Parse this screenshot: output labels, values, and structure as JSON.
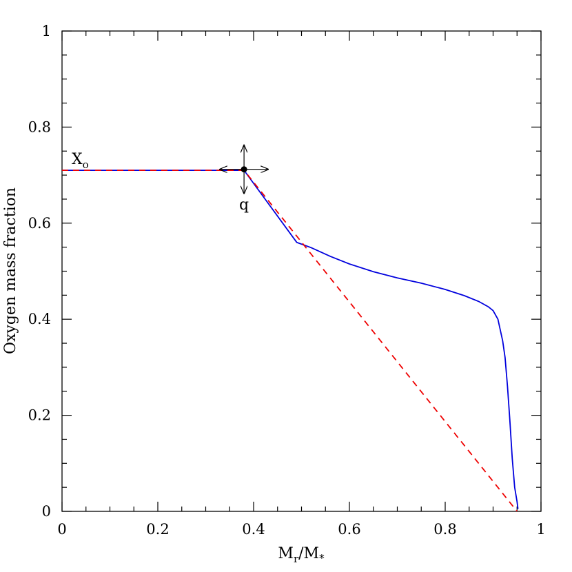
{
  "chart_data": {
    "type": "line",
    "title": "",
    "xlabel_main": "M",
    "xlabel_sub1": "r",
    "xlabel_mid": "/M",
    "xlabel_sub2": "*",
    "ylabel": "Oxygen mass fraction",
    "xlim": [
      0,
      1
    ],
    "ylim": [
      0,
      1
    ],
    "x_ticks": [
      0,
      0.2,
      0.4,
      0.6,
      0.8,
      1
    ],
    "x_tick_labels": [
      "0",
      "0.2",
      "0.4",
      "0.6",
      "0.8",
      "1"
    ],
    "y_ticks": [
      0,
      0.2,
      0.4,
      0.6,
      0.8,
      1
    ],
    "y_tick_labels": [
      "0",
      "0.2",
      "0.4",
      "0.6",
      "0.8",
      "1"
    ],
    "minor_step": 0.05,
    "grid": false,
    "series": [
      {
        "color": "#0000dd",
        "dash": "solid",
        "x": [
          0,
          0.38,
          0.49,
          0.52,
          0.56,
          0.6,
          0.65,
          0.7,
          0.75,
          0.8,
          0.84,
          0.87,
          0.89,
          0.9,
          0.91,
          0.92,
          0.925,
          0.93,
          0.935,
          0.94,
          0.945,
          0.95,
          0.952
        ],
        "y": [
          0.71,
          0.71,
          0.56,
          0.549,
          0.531,
          0.515,
          0.499,
          0.486,
          0.475,
          0.462,
          0.449,
          0.437,
          0.426,
          0.418,
          0.4,
          0.355,
          0.32,
          0.26,
          0.19,
          0.11,
          0.05,
          0.02,
          0.005
        ]
      },
      {
        "color": "#ee0000",
        "dash": "dashed",
        "x": [
          0,
          0.38,
          0.95
        ],
        "y": [
          0.71,
          0.71,
          0
        ]
      }
    ],
    "annotations": {
      "x0_main": "X",
      "x0_sub": "o",
      "q_label": "q",
      "marker_point": [
        0.38,
        0.712
      ]
    }
  }
}
